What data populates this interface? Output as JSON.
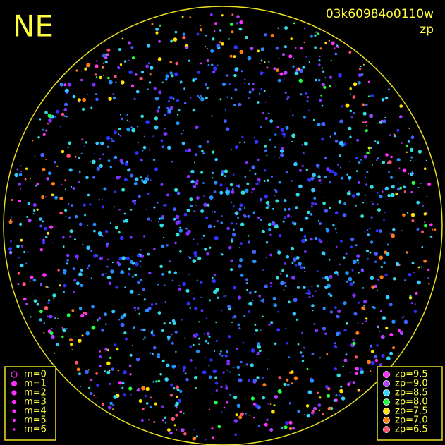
{
  "header": {
    "title": "NE",
    "frame_id": "03k60984o0110w",
    "mode": "zp"
  },
  "legend_m": [
    {
      "label": "m=0",
      "size": 4
    },
    {
      "label": "m=1",
      "size": 3.5
    },
    {
      "label": "m=2",
      "size": 3
    },
    {
      "label": "m=3",
      "size": 2.5
    },
    {
      "label": "m=4",
      "size": 2
    },
    {
      "label": "m=5",
      "size": 1.5
    },
    {
      "label": "m=6",
      "size": 1
    }
  ],
  "legend_zp": [
    {
      "label": "zp=9.5",
      "color": "#ff30ff"
    },
    {
      "label": "zp=9.0",
      "color": "#b040ff"
    },
    {
      "label": "zp=8.5",
      "color": "#30d8ff"
    },
    {
      "label": "zp=8.0",
      "color": "#20ff40"
    },
    {
      "label": "zp=7.5",
      "color": "#ffe000"
    },
    {
      "label": "zp=7.0",
      "color": "#ff7a10"
    },
    {
      "label": "zp=6.5",
      "color": "#ff5070"
    }
  ]
}
